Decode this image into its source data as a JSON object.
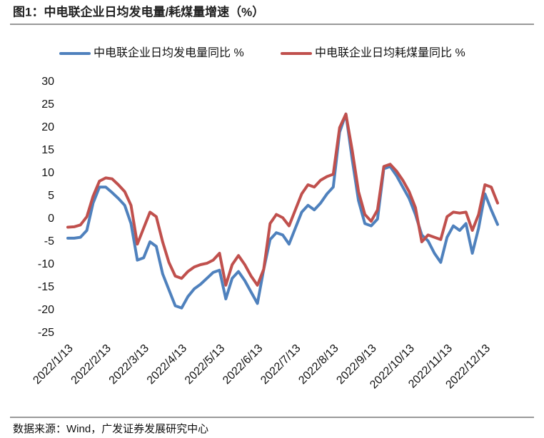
{
  "chart_data": {
    "type": "line",
    "title": "图1：中电联企业日均发电量/耗煤量增速（%）",
    "source": "数据来源：Wind，广发证券发展研究中心",
    "categories": [
      "2022/1/13",
      null,
      null,
      null,
      null,
      null,
      "2022/2/13",
      null,
      null,
      null,
      null,
      null,
      "2022/3/13",
      null,
      null,
      null,
      null,
      null,
      "2022/4/13",
      null,
      null,
      null,
      null,
      null,
      "2022/5/13",
      null,
      null,
      null,
      null,
      null,
      "2022/6/13",
      null,
      null,
      null,
      null,
      null,
      "2022/7/13",
      null,
      null,
      null,
      null,
      null,
      "2022/8/13",
      null,
      null,
      null,
      null,
      null,
      "2022/9/13",
      null,
      null,
      null,
      null,
      null,
      "2022/10/13",
      null,
      null,
      null,
      null,
      null,
      "2022/11/13",
      null,
      null,
      null,
      null,
      null,
      "2022/12/13",
      null,
      null
    ],
    "series": [
      {
        "name": "中电联企业日均发电量同比 %",
        "color": "#4f81bd",
        "values": [
          -4.2,
          -4.2,
          -4.0,
          -2.5,
          3.5,
          7,
          7,
          5.8,
          4.5,
          3,
          -1,
          -9,
          -8.5,
          -5,
          -6,
          -12,
          -15.5,
          -19,
          -19.5,
          -17,
          -15.3,
          -14.3,
          -13,
          -11.7,
          -11.2,
          -17.5,
          -13,
          -11.5,
          -13.5,
          -16,
          -18.5,
          -11,
          -4.5,
          -3,
          -3.5,
          -5.5,
          -2,
          1.5,
          3,
          2,
          3.5,
          5.5,
          7,
          19,
          23,
          13,
          4,
          -1,
          -1.5,
          0,
          11,
          11.5,
          9.5,
          7,
          4.5,
          1,
          -3.5,
          -4.8,
          -7.5,
          -9.5,
          -4,
          -1.5,
          -2.5,
          -1,
          -7.5,
          -2,
          5.5,
          2,
          -1.2
        ]
      },
      {
        "name": "中电联企业日均耗煤量同比 %",
        "color": "#c0504d",
        "values": [
          -1.8,
          -1.7,
          -1.3,
          0.5,
          5,
          8.3,
          9,
          8.8,
          7.5,
          6,
          3,
          -5.5,
          -2,
          1.5,
          0.5,
          -5,
          -9.5,
          -12.5,
          -13,
          -11.5,
          -10.5,
          -10,
          -9.7,
          -9,
          -7.5,
          -14.5,
          -10,
          -8,
          -10,
          -12.5,
          -14.5,
          -11,
          -1,
          1,
          0.3,
          -1.5,
          2,
          5.5,
          7.5,
          7,
          8.5,
          9.3,
          9.8,
          20,
          23,
          15,
          6,
          1,
          -0.5,
          2,
          11.5,
          12,
          10.5,
          8.5,
          6,
          2.5,
          -5,
          -3.5,
          -4,
          -4.5,
          0.5,
          1.5,
          1.3,
          1.5,
          -2.5,
          1,
          7.5,
          7,
          3.5
        ]
      }
    ],
    "ylim": [
      -25,
      30
    ],
    "yticks": [
      -25,
      -20,
      -15,
      -10,
      -5,
      0,
      5,
      10,
      15,
      20,
      25,
      30
    ],
    "grid": false
  }
}
